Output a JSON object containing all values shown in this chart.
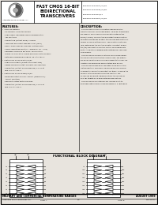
{
  "bg_color": "#e8e4de",
  "header_bg": "#ffffff",
  "border_color": "#000000",
  "header": {
    "logo_text": "Integrated Device Technology, Inc.",
    "center_lines": [
      "FAST CMOS 16-BIT",
      "BIDIRECTIONAL",
      "TRANSCEIVERS"
    ],
    "part_numbers": [
      "IDT54FCT162245AT/CT/ET",
      "IDT54FCT162245BT/CT/ET",
      "IDT54FCT162245T/CT",
      "IDT54FCT162245AT/CT/ET"
    ]
  },
  "features_title": "FEATURES:",
  "features_lines": [
    "•  Common features:",
    "   – 5V NORMAL CMOS technology",
    "   – High-speed, low-power CMOS replacement for",
    "     ABT functions",
    "   – Typical tskp (Output Skew) < 250ps",
    "   – Low input and output leakage < 5μA (max)",
    "   – ESD > 2000V per MIL-STD-883, Method 3015",
    "   – CMOS compatible input (0 = GND±0.5, 1H = VCC)",
    "   – Packages include 56 pin SSOP, 160 mil pitch",
    "     TSSOP, 16.1 mil pitch T-SSOP and 56 mil pitch Ceramic",
    "   – Extended commercial range of -40°C to +85°C",
    "•  Features for FCT162245AT/CT/ET:",
    "   – High drive outputs (300mA typ, 64mA min)",
    "   – Power off disable output prevents 'bus insertion'",
    "   – Typical tPD (Output Ground Bounce) < 1.0V at",
    "     min. 5.0, TA < 25°C",
    "•  Features for FCT162245BT/CT/ET:",
    "   – Balanced Output Drivers: +25mA (commercial),",
    "     +45mA (military)",
    "   – Reduced system switching noise",
    "   – Typical tPD (Output Ground Bounce) < 0.9V at",
    "     min. 5.0, TA < 25°C"
  ],
  "desc_title": "DESCRIPTION:",
  "desc_lines": [
    "The FCT162245 are fully compatible high-speed FAST",
    "CMOS technology. These high-speed, low-power transceivers",
    "are ideal for synchronous communication between two",
    "buses (A and B). The Direction and Output Enable controls",
    "operate these devices as either two independent 8-bit trans-",
    "ceivers or one 16-bit transceiver. The direction control pin",
    "(DIR) determines the direction of data. The output enable",
    "pin (OE) overrides the direction control and disables both",
    "ports. All inputs are designed with hysteresis for improved",
    "noise margin.",
    "  The FCT162245 are ideally suited for driving high capaci-",
    "tive loads and terminated transmission lines. The outputs",
    "are designed with power-off disable capability to allow 'live",
    "insertion' of boards when used as totem-pole drivers.",
    "  The FCT162245 have balanced output drive with system",
    "limiting resistors. This offers low ground bounce, minimal",
    "undershoots, and controlled output fall times - reducing the",
    "need for external series terminating resistors. The",
    "FCT162245 are pinout replacements for the FCT162245",
    "and ABT targets by co-board interface applications.",
    "  The FCT162245 are suited for any low-loss, point-to-",
    "point applications from a single backplane or a light-speed"
  ],
  "block_diagram_title": "FUNCTIONAL BLOCK DIAGRAM",
  "footer_left": "MILITARY AND COMMERCIAL TEMPERATURE RANGES",
  "footer_right": "AUGUST 1999",
  "footer_bottom_left": "Integrated Device Technology, Inc.",
  "footer_bottom_center": "3-2",
  "footer_bottom_right": "MH1-00073"
}
